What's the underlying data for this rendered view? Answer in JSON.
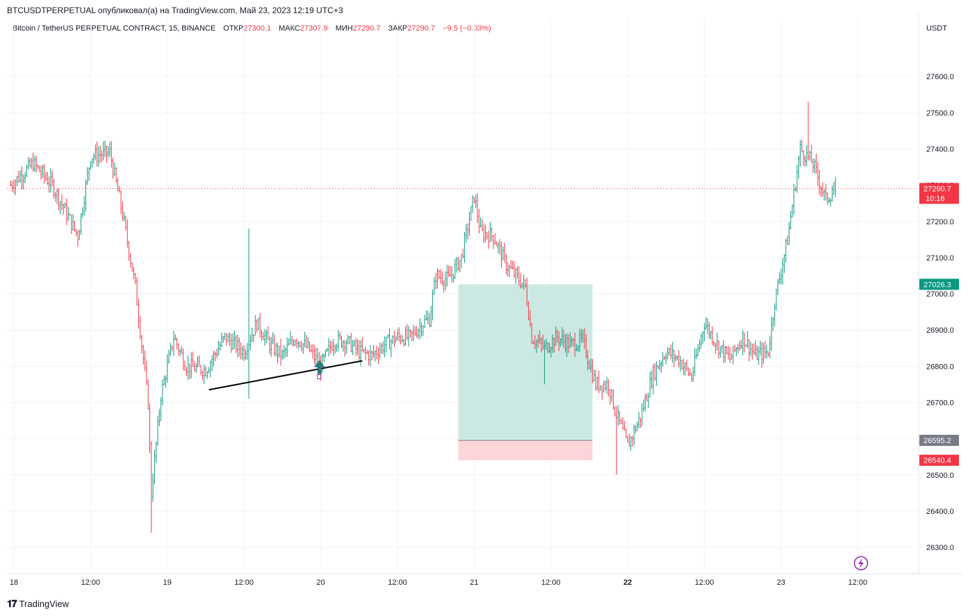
{
  "header": {
    "publish_line": "BTCUSDTPERPETUAL опубликовал(а) на TradingView.com, Май 23, 2023 12:19 UTC+3"
  },
  "legend": {
    "instrument": "Bitcoin / TetherUS PERPETUAL CONTRACT, 15, BINANCE",
    "open_label": "ОТКР",
    "open_value": "27300.1",
    "high_label": "МАКС",
    "high_value": "27307.9",
    "low_label": "МИН",
    "low_value": "27290.7",
    "close_label": "ЗАКР",
    "close_value": "27290.7",
    "change": "−9.5 (−0.03%)"
  },
  "footer": {
    "brand": "TradingView"
  },
  "colors": {
    "up": "#089981",
    "down": "#f23645",
    "grid": "#f0f3fa",
    "target_zone": "#cbe9e2",
    "stop_zone": "#fcd5d9",
    "price_tag_gray": "#787b86"
  },
  "chart_data": {
    "type": "candlestick",
    "currency": "USDT",
    "timeframe": "15",
    "y_ticks": [
      "27600.0",
      "27500.0",
      "27400.0",
      "27300.0",
      "27200.0",
      "27100.0",
      "27000.0",
      "26900.0",
      "26800.0",
      "26700.0",
      "26600.0",
      "26500.0",
      "26400.0",
      "26300.0"
    ],
    "ylim": [
      26235,
      27700
    ],
    "x_ticks": [
      {
        "label": "18",
        "day": 0,
        "hour": 0,
        "bold": false
      },
      {
        "label": "12:00",
        "day": 0,
        "hour": 12,
        "bold": false
      },
      {
        "label": "19",
        "day": 1,
        "hour": 0,
        "bold": false
      },
      {
        "label": "12:00",
        "day": 1,
        "hour": 12,
        "bold": false
      },
      {
        "label": "20",
        "day": 2,
        "hour": 0,
        "bold": false
      },
      {
        "label": "12:00",
        "day": 2,
        "hour": 12,
        "bold": false
      },
      {
        "label": "21",
        "day": 3,
        "hour": 0,
        "bold": false
      },
      {
        "label": "12:00",
        "day": 3,
        "hour": 12,
        "bold": false
      },
      {
        "label": "22",
        "day": 4,
        "hour": 0,
        "bold": true
      },
      {
        "label": "12:00",
        "day": 4,
        "hour": 12,
        "bold": false
      },
      {
        "label": "23",
        "day": 5,
        "hour": 0,
        "bold": false
      },
      {
        "label": "12:00",
        "day": 5,
        "hour": 12,
        "bold": false
      }
    ],
    "price_path_hours": [
      [
        -0.5,
        27300
      ],
      [
        3,
        27360
      ],
      [
        6,
        27300
      ],
      [
        10,
        27160
      ],
      [
        12,
        27380
      ],
      [
        15,
        27390
      ],
      [
        17,
        27220
      ],
      [
        19,
        27020
      ],
      [
        21,
        26700
      ],
      [
        21.5,
        26450
      ],
      [
        23,
        26720
      ],
      [
        25,
        26880
      ],
      [
        27,
        26800
      ],
      [
        30,
        26790
      ],
      [
        33,
        26880
      ],
      [
        36,
        26840
      ],
      [
        38,
        26920
      ],
      [
        40,
        26860
      ],
      [
        42,
        26830
      ],
      [
        44,
        26880
      ],
      [
        46,
        26850
      ],
      [
        48,
        26800
      ],
      [
        50,
        26870
      ],
      [
        52,
        26870
      ],
      [
        54,
        26840
      ],
      [
        56,
        26830
      ],
      [
        58,
        26860
      ],
      [
        60,
        26880
      ],
      [
        62,
        26880
      ],
      [
        64,
        26920
      ],
      [
        65,
        26930
      ],
      [
        66,
        27050
      ],
      [
        68,
        27040
      ],
      [
        70,
        27100
      ],
      [
        72,
        27270
      ],
      [
        73,
        27170
      ],
      [
        75,
        27160
      ],
      [
        77,
        27080
      ],
      [
        79,
        27040
      ],
      [
        80,
        27020
      ],
      [
        81,
        26880
      ],
      [
        83,
        26850
      ],
      [
        85,
        26880
      ],
      [
        87,
        26860
      ],
      [
        89,
        26870
      ],
      [
        91,
        26750
      ],
      [
        93,
        26750
      ],
      [
        94,
        26680
      ],
      [
        96,
        26580
      ],
      [
        98,
        26660
      ],
      [
        100,
        26780
      ],
      [
        102,
        26840
      ],
      [
        104,
        26820
      ],
      [
        106,
        26770
      ],
      [
        108,
        26920
      ],
      [
        110,
        26860
      ],
      [
        112,
        26820
      ],
      [
        114,
        26880
      ],
      [
        116,
        26830
      ],
      [
        118,
        26840
      ],
      [
        119,
        26980
      ],
      [
        121,
        27150
      ],
      [
        123,
        27400
      ],
      [
        125,
        27360
      ],
      [
        127,
        27260
      ],
      [
        128.5,
        27290
      ]
    ],
    "events": [
      {
        "hour": 21.5,
        "low": 26340
      },
      {
        "hour": 36.8,
        "low": 26710,
        "high": 27180
      },
      {
        "hour": 83.0,
        "low": 26750
      },
      {
        "hour": 94.3,
        "low": 26500
      },
      {
        "hour": 124.3,
        "high": 27530
      }
    ],
    "trendline": {
      "from": {
        "hour": 30.5,
        "price": 26735
      },
      "to": {
        "hour": 54.5,
        "price": 26815
      }
    },
    "signal_arrow": {
      "hour": 47.8,
      "price": 26790
    },
    "position": {
      "start_hour": 69.5,
      "end_hour": 90.5,
      "target": 27026.3,
      "entry": 26595.2,
      "stop": 26540.4
    },
    "price_tags": [
      {
        "value": "27290.7",
        "sub": "10:16",
        "color": "#f23645"
      },
      {
        "value": "27026.3",
        "color": "#089981"
      },
      {
        "value": "26595.2",
        "color": "#787b86"
      },
      {
        "value": "26540.4",
        "color": "#f23645"
      }
    ],
    "last_price": 27290.7
  }
}
